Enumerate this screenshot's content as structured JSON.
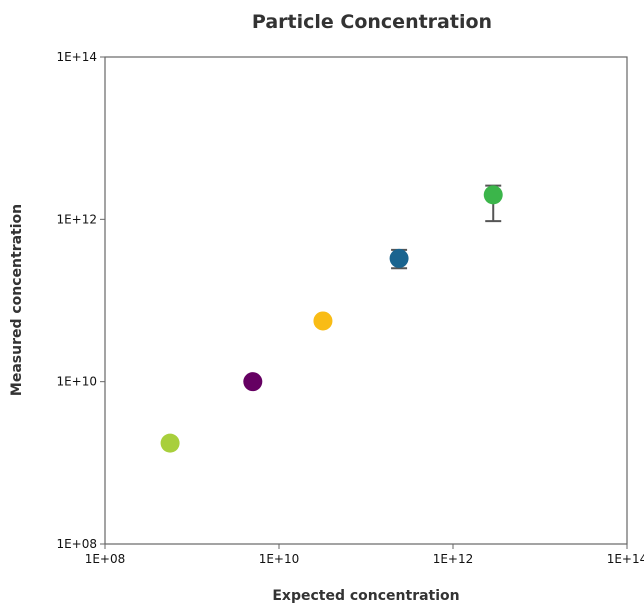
{
  "chart_data": {
    "type": "scatter",
    "title": "Particle Concentration",
    "xlabel": "Expected concentration",
    "ylabel": "Measured concentration",
    "xscale": "log",
    "yscale": "log",
    "xlim": [
      100000000,
      100000000000000
    ],
    "ylim": [
      100000000,
      100000000000000
    ],
    "xticks": [
      100000000,
      10000000000,
      1000000000000,
      100000000000000
    ],
    "yticks": [
      100000000,
      10000000000,
      1000000000000,
      100000000000000
    ],
    "xtick_labels": [
      "1E+08",
      "1E+10",
      "1E+12",
      "1E+14"
    ],
    "ytick_labels": [
      "1E+08",
      "1E+10",
      "1E+12",
      "1E+14"
    ],
    "grid": false,
    "points": [
      {
        "x": 560000000,
        "y": 1750000000,
        "y_low": null,
        "y_high": null,
        "color": "#a8cf3c"
      },
      {
        "x": 5000000000,
        "y": 10000000000,
        "y_low": null,
        "y_high": null,
        "color": "#650062"
      },
      {
        "x": 32000000000,
        "y": 56000000000,
        "y_low": null,
        "y_high": null,
        "color": "#f9bc15"
      },
      {
        "x": 240000000000,
        "y": 330000000000,
        "y_low": 250000000000,
        "y_high": 420000000000,
        "color": "#1a648f"
      },
      {
        "x": 2900000000000,
        "y": 2000000000000,
        "y_low": 950000000000,
        "y_high": 2600000000000,
        "color": "#3bb54a"
      }
    ]
  }
}
